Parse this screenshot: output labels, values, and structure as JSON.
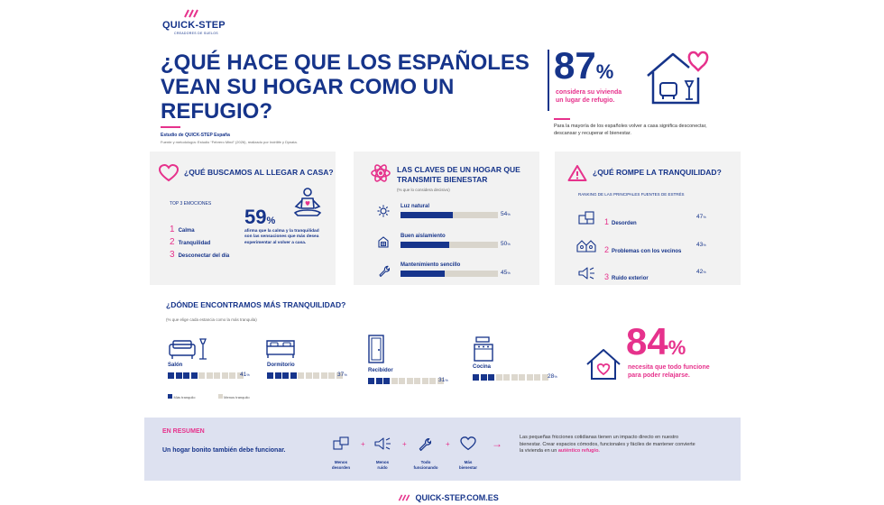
{
  "brand": {
    "name": "QUICK-STEP",
    "tagline": "CREADORES DE SUELOS",
    "footer_url": "QUICK-STEP.COM.ES"
  },
  "title": {
    "line1": "¿QUÉ HACE QUE LOS ESPAÑOLES",
    "line2": "VEAN SU HOGAR COMO UN",
    "line3": "REFUGIO?",
    "study": "Estudio de QUICK-STEP España",
    "source": "Fuente y metodología: Estudio “Febrero Mind” (2026), realizado por Indrilife y Dynata."
  },
  "hero_stat": {
    "number": "87",
    "pct": "%",
    "desc1": "considera su vivienda",
    "desc2": "un lugar de refugio.",
    "note": "Para la mayoría de los españoles volver a casa significa desconectar, descansar y recuperar el bienestar."
  },
  "emotions": {
    "heading": "¿QUÉ BUSCAMOS AL LLEGAR A CASA?",
    "sub": "TOP 3 EMOCIONES",
    "items": [
      {
        "n": "1",
        "label": "Calma"
      },
      {
        "n": "2",
        "label": "Tranquilidad"
      },
      {
        "n": "3",
        "label": "Desconectar del día"
      }
    ],
    "stat": "59",
    "pct": "%",
    "stat_desc": "afirma que la calma y la tranquilidad son las sensaciones que más desea experimentar al volver a casa."
  },
  "keys": {
    "heading": "LAS CLAVES DE UN HOGAR QUE TRANSMITE BIENESTAR",
    "note": "(% que lo considera decisivo)",
    "items": [
      {
        "label": "Luz natural",
        "value": 54,
        "text": "54",
        "unit": "%"
      },
      {
        "label": "Buen aislamiento",
        "value": 50,
        "text": "50",
        "unit": "%"
      },
      {
        "label": "Mantenimiento sencillo",
        "value": 45,
        "text": "45",
        "unit": "%"
      }
    ]
  },
  "stress": {
    "heading": "¿QUÉ ROMPE LA TRANQUILIDAD?",
    "sub": "RANKING DE LAS PRINCIPALES FUENTES DE ESTRÉS",
    "items": [
      {
        "n": "1",
        "label": "Desorden",
        "value": "47",
        "unit": "%"
      },
      {
        "n": "2",
        "label": "Problemas con los vecinos",
        "value": "43",
        "unit": "%"
      },
      {
        "n": "3",
        "label": "Ruido exterior",
        "value": "42",
        "unit": "%"
      }
    ]
  },
  "rooms": {
    "heading": "¿DÓNDE ENCONTRAMOS MÁS TRANQUILIDAD?",
    "note": "(% que elige cada estancia como la más tranquila)",
    "items": [
      {
        "label": "Salón",
        "value": "41",
        "unit": "%",
        "filled": 4
      },
      {
        "label": "Dormitorio",
        "value": "37",
        "unit": "%",
        "filled": 4
      },
      {
        "label": "Recibidor",
        "value": "31",
        "unit": "%",
        "filled": 3
      },
      {
        "label": "Cocina",
        "value": "28",
        "unit": "%",
        "filled": 3
      }
    ],
    "legend_more": "Más tranquilo",
    "legend_less": "Menos tranquilo"
  },
  "function_stat": {
    "number": "84",
    "pct": "%",
    "desc1": "necesita que todo funcione",
    "desc2": "para poder relajarse."
  },
  "summary": {
    "heading": "EN RESUMEN",
    "tagline": "Un hogar bonito también debe funcionar.",
    "items": [
      {
        "l1": "Menos",
        "l2": "desorden"
      },
      {
        "l1": "Menos",
        "l2": "ruido"
      },
      {
        "l1": "Todo",
        "l2": "funcionando"
      },
      {
        "l1": "Más",
        "l2": "bienestar"
      }
    ],
    "plus": "+",
    "arrow": "→",
    "text": "Las pequeñas fricciones cotidianas tienen un impacto directo en nuestro bienestar. Crear espacios cómodos, funcionales y fáciles de mantener convierte la vivienda en un",
    "highlight": "auténtico refugio."
  },
  "colors": {
    "navy": "#16348a",
    "pink": "#e6328c",
    "card": "#f2f2f2",
    "summary_bg": "#dde1f0",
    "bar_track": "#d9d5cc"
  }
}
